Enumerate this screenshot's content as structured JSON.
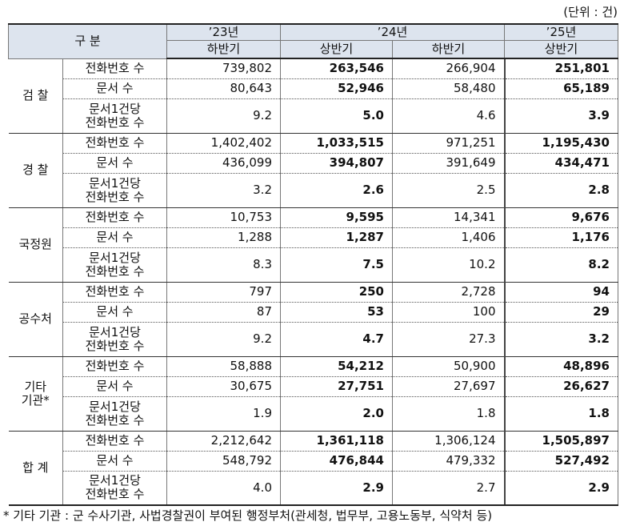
{
  "unit": "(단위 : 건)",
  "header": {
    "category": "구 분",
    "periods": [
      {
        "year": "’23년",
        "halves": [
          "하반기"
        ]
      },
      {
        "year": "’24년",
        "halves": [
          "상반기",
          "하반기"
        ]
      },
      {
        "year": "’25년",
        "halves": [
          "상반기"
        ]
      }
    ]
  },
  "groups": [
    {
      "name": "검 찰",
      "rows": [
        {
          "label": "전화번호 수",
          "values": [
            "739,802",
            "263,546",
            "266,904",
            "251,801"
          ]
        },
        {
          "label": "문서 수",
          "values": [
            "80,643",
            "52,946",
            "58,480",
            "65,189"
          ]
        },
        {
          "label": "문서1건당\n전화번호 수",
          "values": [
            "9.2",
            "5.0",
            "4.6",
            "3.9"
          ]
        }
      ]
    },
    {
      "name": "경 찰",
      "rows": [
        {
          "label": "전화번호 수",
          "values": [
            "1,402,402",
            "1,033,515",
            "971,251",
            "1,195,430"
          ]
        },
        {
          "label": "문서 수",
          "values": [
            "436,099",
            "394,807",
            "391,649",
            "434,471"
          ]
        },
        {
          "label": "문서1건당\n전화번호 수",
          "values": [
            "3.2",
            "2.6",
            "2.5",
            "2.8"
          ]
        }
      ]
    },
    {
      "name": "국정원",
      "rows": [
        {
          "label": "전화번호 수",
          "values": [
            "10,753",
            "9,595",
            "14,341",
            "9,676"
          ]
        },
        {
          "label": "문서 수",
          "values": [
            "1,288",
            "1,287",
            "1,406",
            "1,176"
          ]
        },
        {
          "label": "문서1건당\n전화번호 수",
          "values": [
            "8.3",
            "7.5",
            "10.2",
            "8.2"
          ]
        }
      ]
    },
    {
      "name": "공수처",
      "rows": [
        {
          "label": "전화번호 수",
          "values": [
            "797",
            "250",
            "2,728",
            "94"
          ]
        },
        {
          "label": "문서 수",
          "values": [
            "87",
            "53",
            "100",
            "29"
          ]
        },
        {
          "label": "문서1건당\n전화번호 수",
          "values": [
            "9.2",
            "4.7",
            "27.3",
            "3.2"
          ]
        }
      ]
    },
    {
      "name": "기타\n기관*",
      "rows": [
        {
          "label": "전화번호 수",
          "values": [
            "58,888",
            "54,212",
            "50,900",
            "48,896"
          ]
        },
        {
          "label": "문서 수",
          "values": [
            "30,675",
            "27,751",
            "27,697",
            "26,627"
          ]
        },
        {
          "label": "문서1건당\n전화번호 수",
          "values": [
            "1.9",
            "2.0",
            "1.8",
            "1.8"
          ]
        }
      ]
    },
    {
      "name": "합 계",
      "rows": [
        {
          "label": "전화번호 수",
          "values": [
            "2,212,642",
            "1,361,118",
            "1,306,124",
            "1,505,897"
          ]
        },
        {
          "label": "문서 수",
          "values": [
            "548,792",
            "476,844",
            "479,332",
            "527,492"
          ]
        },
        {
          "label": "문서1건당\n전화번호 수",
          "values": [
            "4.0",
            "2.9",
            "2.7",
            "2.9"
          ]
        }
      ]
    }
  ],
  "footnote": "* 기타 기관 : 군 수사기관, 사법경찰권이 부여된 행정부처(관세청, 법무부, 고용노동부, 식약처 등)"
}
